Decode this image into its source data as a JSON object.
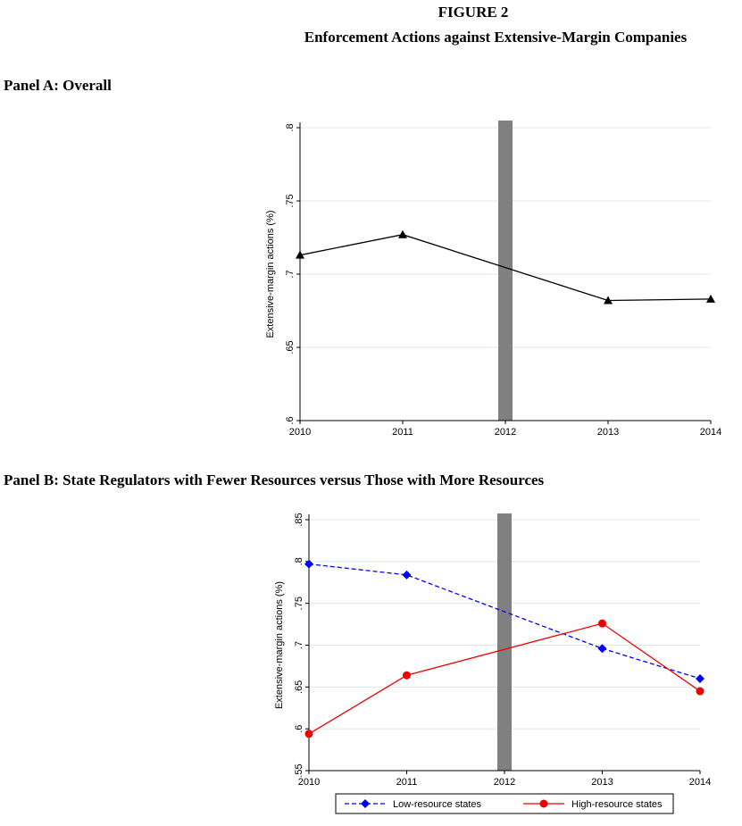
{
  "figure": {
    "label": "FIGURE 2",
    "title": "Enforcement Actions against Extensive-Margin Companies"
  },
  "panel_a": {
    "title": "Panel A: Overall"
  },
  "panel_b": {
    "title": "Panel B: State Regulators with Fewer Resources versus Those with More Resources"
  },
  "chart_data": [
    {
      "type": "line",
      "title": "Panel A: Overall",
      "xlabel": "",
      "ylabel": "Extensive-margin actions (%)",
      "x": [
        2010,
        2011,
        2012,
        2013,
        2014
      ],
      "xticks": [
        "2010",
        "2011",
        "2012",
        "2013",
        "2014"
      ],
      "yticks": [
        ".6",
        ".65",
        ".7",
        ".75",
        ".8"
      ],
      "ylim": [
        0.6,
        0.8
      ],
      "xlim": [
        2010,
        2014
      ],
      "grid": true,
      "event_bar_x": 2012,
      "series": [
        {
          "name": "Overall",
          "x": [
            2010,
            2011,
            2013,
            2014
          ],
          "values": [
            0.713,
            0.727,
            0.682,
            0.683
          ],
          "color": "#000000",
          "marker": "triangle",
          "dash": "solid"
        }
      ]
    },
    {
      "type": "line",
      "title": "Panel B: State Regulators with Fewer Resources versus Those with More Resources",
      "xlabel": "",
      "ylabel": "Extensive-margin actions (%)",
      "x": [
        2010,
        2011,
        2012,
        2013,
        2014
      ],
      "xticks": [
        "2010",
        "2011",
        "2012",
        "2013",
        "2014"
      ],
      "yticks": [
        ".55",
        ".6",
        ".65",
        ".7",
        ".75",
        ".8",
        ".85"
      ],
      "ylim": [
        0.55,
        0.85
      ],
      "xlim": [
        2010,
        2014
      ],
      "grid": true,
      "event_bar_x": 2012,
      "legend": "bottom",
      "series": [
        {
          "name": "Low-resource states",
          "x": [
            2010,
            2011,
            2013,
            2014
          ],
          "values": [
            0.797,
            0.784,
            0.696,
            0.66
          ],
          "color": "#0000ee",
          "marker": "diamond",
          "dash": "dashed"
        },
        {
          "name": "High-resource states",
          "x": [
            2010,
            2011,
            2013,
            2014
          ],
          "values": [
            0.594,
            0.664,
            0.726,
            0.645
          ],
          "color": "#ee0000",
          "marker": "circle",
          "dash": "solid"
        }
      ]
    }
  ]
}
